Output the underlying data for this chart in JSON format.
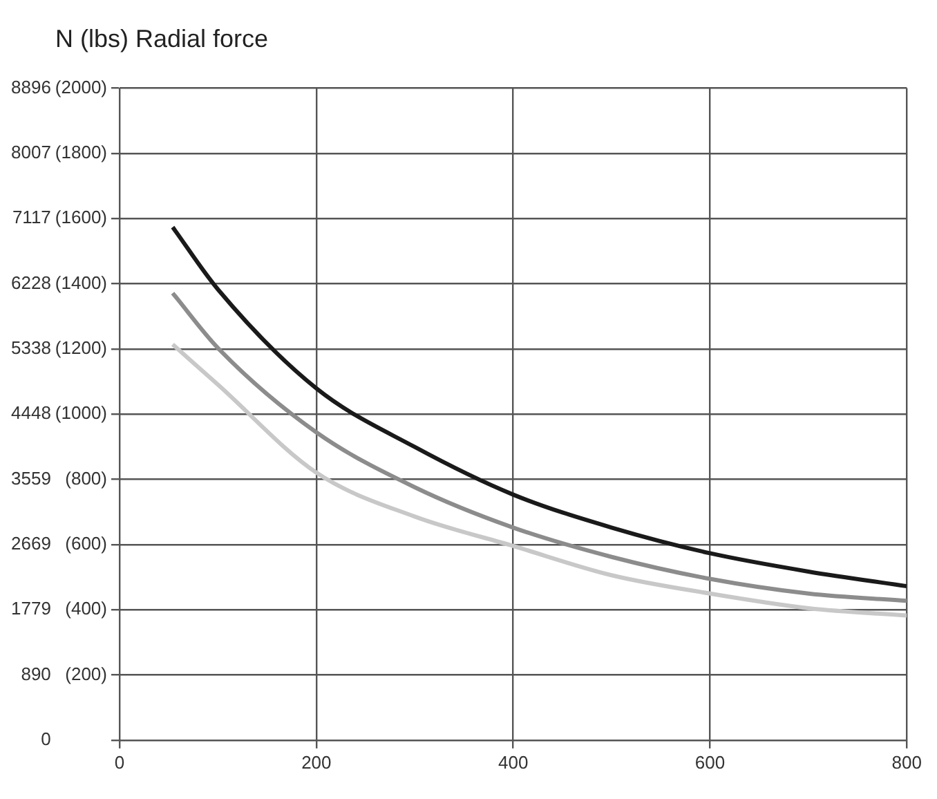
{
  "chart_data": {
    "type": "line",
    "title": "N (lbs) Radial force",
    "x": [
      54,
      100,
      200,
      300,
      400,
      500,
      600,
      700,
      800
    ],
    "series": [
      {
        "color": "#1a1a1a",
        "values": [
          7000,
          6150,
          4800,
          4000,
          3350,
          2900,
          2550,
          2300,
          2100
        ]
      },
      {
        "color": "#8c8c8c",
        "values": [
          6100,
          5350,
          4200,
          3450,
          2900,
          2500,
          2200,
          2000,
          1900
        ]
      },
      {
        "color": "#c8c8c8",
        "values": [
          5400,
          4850,
          3650,
          3050,
          2650,
          2250,
          2000,
          1800,
          1700
        ]
      }
    ],
    "xlim": [
      0,
      800
    ],
    "xticks": [
      0,
      200,
      400,
      600,
      800
    ],
    "ylim": [
      0,
      8896
    ],
    "yticks": [
      0,
      890,
      1779,
      2669,
      3559,
      4448,
      5338,
      6228,
      7117,
      8007,
      8896
    ],
    "y2lim": [
      0,
      2000
    ],
    "y2ticks": [
      {
        "value": 0,
        "label": null
      },
      {
        "value": 200,
        "label": "(200)"
      },
      {
        "value": 400,
        "label": "(400)"
      },
      {
        "value": 600,
        "label": "(600)"
      },
      {
        "value": 800,
        "label": "(800)"
      },
      {
        "value": 1000,
        "label": "(1000)"
      },
      {
        "value": 1200,
        "label": "(1200)"
      },
      {
        "value": 1400,
        "label": "(1400)"
      },
      {
        "value": 1600,
        "label": "(1600)"
      },
      {
        "value": 1800,
        "label": "(1800)"
      },
      {
        "value": 2000,
        "label": "(2000)"
      }
    ],
    "grid": true,
    "marker": "none",
    "line_style": "solid"
  }
}
